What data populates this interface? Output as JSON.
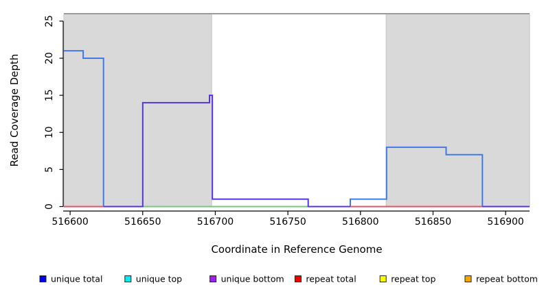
{
  "chart_data": {
    "type": "line",
    "subtype": "step-coverage-plot",
    "title": "",
    "xlabel": "Coordinate in Reference Genome",
    "ylabel": "Read Coverage Depth",
    "xlim": [
      516595.7,
      516916.5
    ],
    "ylim": [
      -1,
      26
    ],
    "grid": false,
    "x_tick_values": [
      516600,
      516650,
      516700,
      516750,
      516800,
      516850,
      516900
    ],
    "x_tick_labels": [
      "516600",
      "516650",
      "516700",
      "516750",
      "516800",
      "516850",
      "516900"
    ],
    "y_tick_values": [
      0,
      5,
      10,
      15,
      20,
      25
    ],
    "y_tick_labels": [
      "0",
      "5",
      "10",
      "15",
      "20",
      "25"
    ],
    "shaded_regions": [
      {
        "from": 516595.7,
        "to": 516697.5
      },
      {
        "from": 516817.7,
        "to": 516916.5
      }
    ],
    "colors": {
      "region_fill": "#D9D9D9",
      "region_border": "#C3C3C3",
      "top_border": "#9A9A9A",
      "axis": "#000000",
      "unique_total_line": "#3D7BE8",
      "unique_bottom_line": "#5633E2",
      "overlap_green_line": "#79C67C",
      "repeat_total_line": "#DE5468"
    },
    "series": [
      {
        "name": "unique total",
        "color": "#3D7BE8",
        "points": [
          [
            516595.7,
            21
          ],
          [
            516609,
            21
          ],
          [
            516609,
            20
          ],
          [
            516623,
            20
          ],
          [
            516623,
            0
          ],
          [
            516793,
            0
          ],
          [
            516793,
            1
          ],
          [
            516818,
            1
          ],
          [
            516818,
            8
          ],
          [
            516859,
            8
          ],
          [
            516859,
            7
          ],
          [
            516884,
            7
          ],
          [
            516884,
            0
          ],
          [
            516916.5,
            0
          ]
        ]
      },
      {
        "name": "unique top",
        "color": "#79C67C",
        "points": [
          [
            516650,
            0
          ],
          [
            516764,
            0
          ]
        ]
      },
      {
        "name": "unique bottom",
        "color": "#5633E2",
        "points": [
          [
            516595.7,
            0
          ],
          [
            516650,
            0
          ],
          [
            516650,
            14
          ],
          [
            516696,
            14
          ],
          [
            516696,
            15
          ],
          [
            516698,
            15
          ],
          [
            516698,
            1
          ],
          [
            516764,
            1
          ],
          [
            516764,
            0
          ],
          [
            516916.5,
            0
          ]
        ]
      },
      {
        "name": "repeat total",
        "color": "#DE5468",
        "points": [
          [
            516595.7,
            0
          ],
          [
            516623,
            0
          ]
        ]
      },
      {
        "name": "repeat total",
        "color": "#DE5468",
        "points": [
          [
            516793,
            0
          ],
          [
            516884,
            0
          ]
        ]
      }
    ],
    "legend": {
      "position": "bottom",
      "entries": [
        {
          "label": "unique total",
          "color": "#0000EE"
        },
        {
          "label": "unique top",
          "color": "#00EEEE"
        },
        {
          "label": "unique bottom",
          "color": "#A020F0"
        },
        {
          "label": "repeat total",
          "color": "#EE0000"
        },
        {
          "label": "repeat top",
          "color": "#FFFF00"
        },
        {
          "label": "repeat bottom",
          "color": "#FFA500"
        }
      ]
    }
  }
}
